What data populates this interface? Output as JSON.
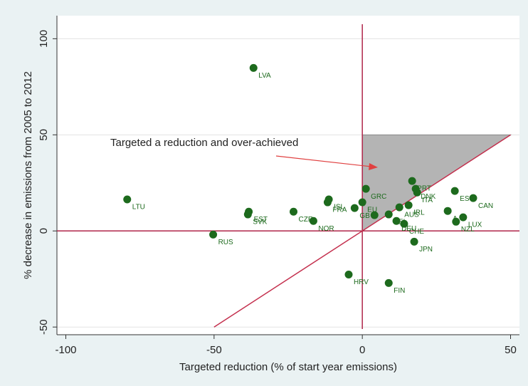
{
  "chart_data": {
    "type": "scatter",
    "xlabel": "Targeted reduction (% of start year emissions)",
    "ylabel": "% decrease in emissions from 2005 to 2012",
    "annotation": "Targeted a reduction and over-achieved",
    "xlim": [
      -103,
      53
    ],
    "ylim": [
      -54,
      112
    ],
    "xticks": [
      -100,
      -50,
      0,
      50
    ],
    "yticks": [
      -50,
      0,
      50,
      100
    ],
    "grid": true,
    "color": "#1d6a1d",
    "x": [
      -36.7,
      -79.3,
      -38.3,
      -38.6,
      -50.3,
      -23.2,
      -16.5,
      -11.3,
      -11.7,
      1.2,
      0,
      -2.6,
      4.1,
      16.8,
      18,
      18.5,
      15.6,
      8.9,
      11.5,
      14.1,
      12.5,
      31.2,
      37.4,
      28.8,
      34,
      31.6,
      17.5,
      -4.6,
      8.9
    ],
    "values": [
      84.8,
      16.4,
      10,
      8.6,
      -1.9,
      10,
      5.2,
      16.4,
      14.9,
      21.9,
      14.9,
      11.9,
      8.2,
      26,
      21.9,
      20,
      13.4,
      8.6,
      5.2,
      3.7,
      12.3,
      20.8,
      17.1,
      10.4,
      7.1,
      4.8,
      -5.6,
      -22.7,
      -27.1
    ],
    "point_labels": [
      "LVA",
      "LTU",
      "EST",
      "SVK",
      "RUS",
      "CZE",
      "NOR",
      "ISL",
      "FRA",
      "GRC",
      "EU",
      "GB",
      null,
      "PRT",
      "DNK",
      "ITA",
      "IRL",
      "BEL",
      "DEU",
      "CHE",
      "AUS",
      "ES",
      "CAN",
      "A",
      "LUX",
      "NZL",
      "JPN",
      "HRV",
      "FIN"
    ]
  }
}
